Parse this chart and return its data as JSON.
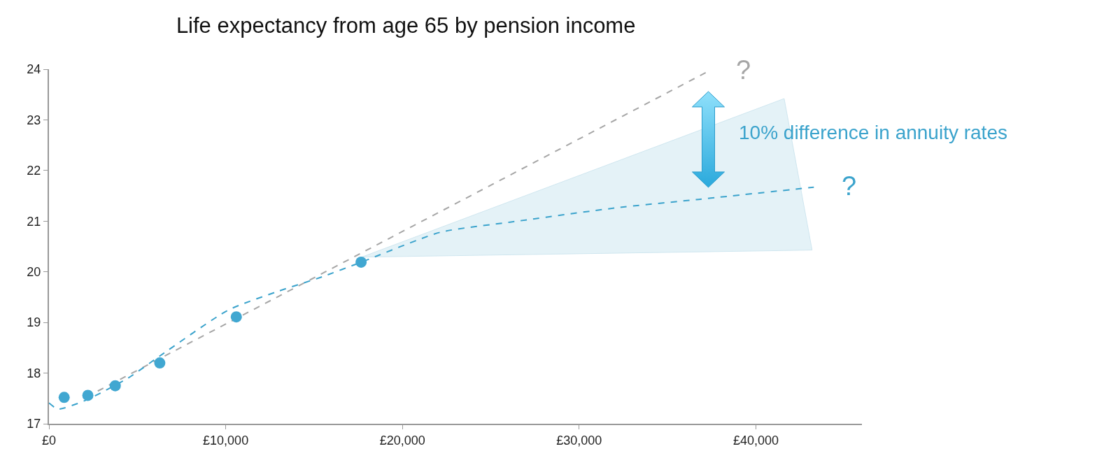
{
  "chart_data": {
    "type": "scatter",
    "title": "Life expectancy from age 65 by pension income",
    "series": [
      {
        "type": "area",
        "color": "#e4f2f7",
        "x": [
          17690,
          41600,
          43180
        ],
        "values": [
          null,
          null,
          null
        ],
        "lower": [
          20.29,
          20.42,
          20.43
        ],
        "upper": [
          20.29,
          23.42,
          20.43
        ]
      },
      {
        "type": "line",
        "color": "#a6a6a6",
        "line_style": "dashed",
        "marker": "none",
        "x": [
          2130,
          37310
        ],
        "values": [
          17.53,
          23.96
        ]
      },
      {
        "type": "line",
        "color": "#3ba3cc",
        "line_style": "dashed",
        "marker": "none",
        "x": [
          0,
          510,
          2060,
          4470,
          6280,
          10120,
          12920,
          15450,
          17670,
          22130,
          26090,
          32020,
          36760,
          43280
        ],
        "values": [
          17.41,
          17.29,
          17.46,
          17.9,
          18.34,
          19.24,
          19.61,
          19.9,
          20.19,
          20.78,
          20.98,
          21.26,
          21.43,
          21.67
        ]
      },
      {
        "color": "#41a7d1",
        "marker": "circle",
        "x": [
          860,
          2200,
          3750,
          6270,
          10600,
          17660
        ],
        "values": [
          17.52,
          17.56,
          17.75,
          18.2,
          19.11,
          20.19
        ]
      }
    ],
    "annotations": [
      "?",
      "?",
      "10% difference in annuity rates"
    ],
    "xlim": [
      0,
      46000
    ],
    "xticks": [
      {
        "value": 0,
        "label": "£0"
      },
      {
        "value": 10000,
        "label": "£10,000"
      },
      {
        "value": 20000,
        "label": "£20,000"
      },
      {
        "value": 30000,
        "label": "£30,000"
      },
      {
        "value": 40000,
        "label": "£40,000"
      }
    ],
    "ylim": [
      17,
      24
    ],
    "yticks": [
      17,
      18,
      19,
      20,
      21,
      22,
      23,
      24
    ],
    "grid": false
  }
}
